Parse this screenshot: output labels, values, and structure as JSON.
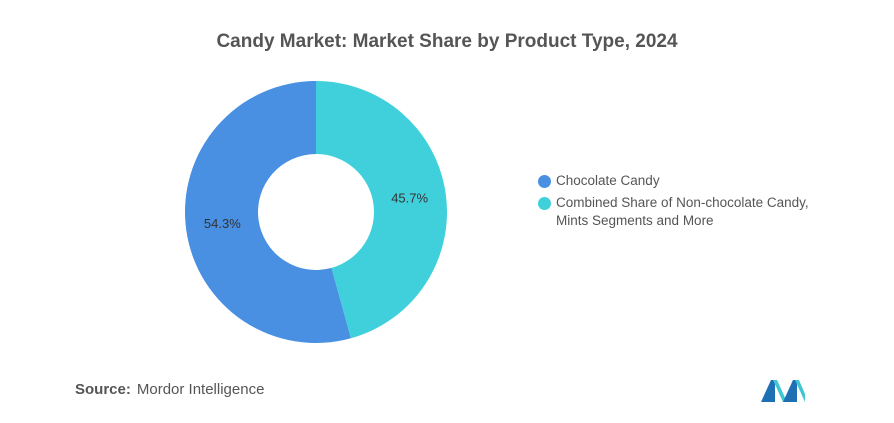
{
  "chart_data": {
    "type": "pie",
    "title": "Candy Market: Market Share by Product Type, 2024",
    "series": [
      {
        "name": "Chocolate Candy",
        "value": 54.3,
        "label": "54.3%",
        "color": "#4a90e2"
      },
      {
        "name": "Combined Share of Non-chocolate Candy, Mints Segments and More",
        "value": 45.7,
        "label": "45.7%",
        "color": "#40d0dc"
      }
    ],
    "legend_position": "right"
  },
  "footer": {
    "source_label": "Source:",
    "source_text": "Mordor Intelligence"
  },
  "logo": {
    "icon": "mordor-intelligence-logo",
    "colors": [
      "#1f6fb5",
      "#3fc6d2"
    ]
  }
}
